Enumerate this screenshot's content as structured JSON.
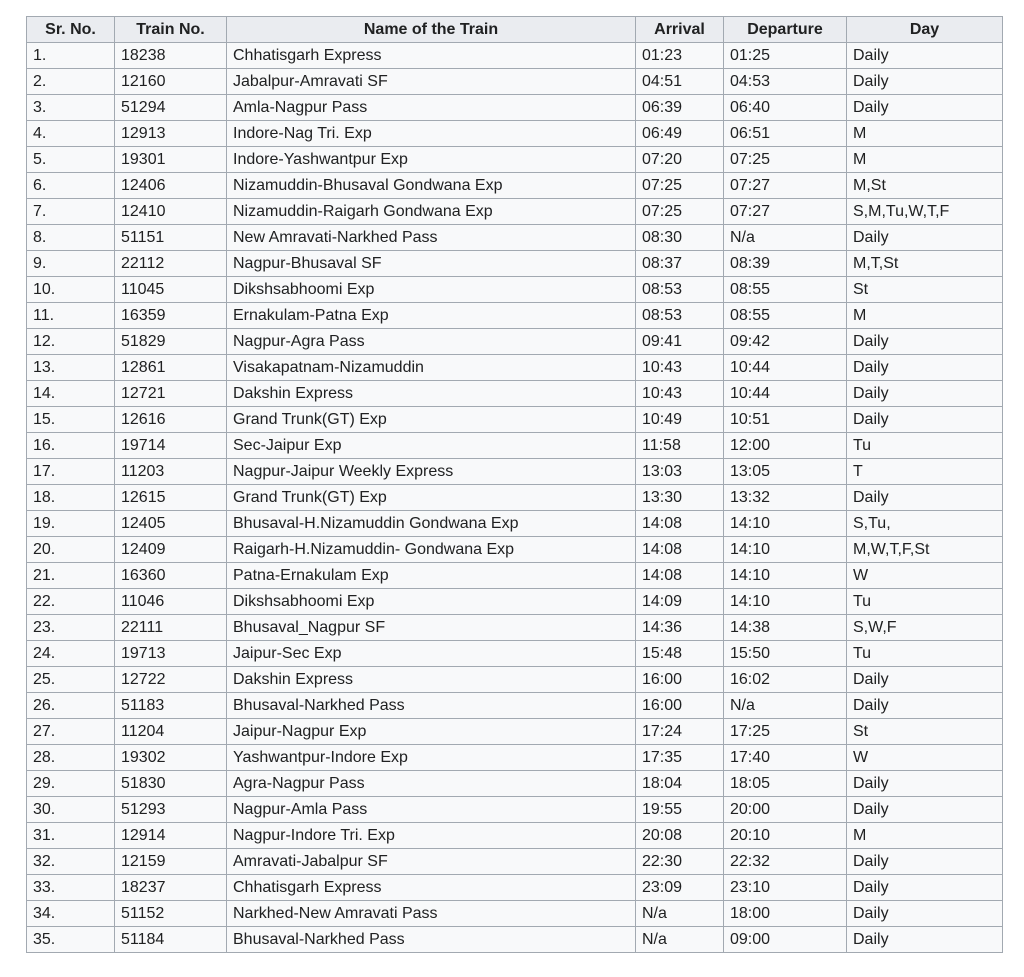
{
  "table": {
    "headers": [
      "Sr. No.",
      "Train No.",
      "Name of the Train",
      "Arrival",
      "Departure",
      "Day"
    ],
    "rows": [
      [
        "1.",
        "18238",
        "Chhatisgarh Express",
        "01:23",
        "01:25",
        "Daily"
      ],
      [
        "2.",
        "12160",
        "Jabalpur-Amravati SF",
        "04:51",
        "04:53",
        "Daily"
      ],
      [
        "3.",
        "51294",
        "Amla-Nagpur Pass",
        "06:39",
        "06:40",
        "Daily"
      ],
      [
        "4.",
        "12913",
        "Indore-Nag Tri. Exp",
        "06:49",
        "06:51",
        "M"
      ],
      [
        "5.",
        "19301",
        "Indore-Yashwantpur Exp",
        "07:20",
        "07:25",
        "M"
      ],
      [
        "6.",
        "12406",
        "Nizamuddin-Bhusaval Gondwana Exp",
        "07:25",
        "07:27",
        "M,St"
      ],
      [
        "7.",
        "12410",
        "Nizamuddin-Raigarh Gondwana Exp",
        "07:25",
        "07:27",
        "S,M,Tu,W,T,F"
      ],
      [
        "8.",
        "51151",
        "New Amravati-Narkhed Pass",
        "08:30",
        "N/a",
        "Daily"
      ],
      [
        "9.",
        "22112",
        "Nagpur-Bhusaval SF",
        "08:37",
        "08:39",
        "M,T,St"
      ],
      [
        "10.",
        "11045",
        "Dikshsabhoomi Exp",
        "08:53",
        "08:55",
        "St"
      ],
      [
        "11.",
        "16359",
        "Ernakulam-Patna Exp",
        "08:53",
        "08:55",
        "M"
      ],
      [
        "12.",
        "51829",
        "Nagpur-Agra Pass",
        "09:41",
        "09:42",
        "Daily"
      ],
      [
        "13.",
        "12861",
        "Visakapatnam-Nizamuddin",
        "10:43",
        "10:44",
        "Daily"
      ],
      [
        "14.",
        "12721",
        "Dakshin Express",
        "10:43",
        "10:44",
        "Daily"
      ],
      [
        "15.",
        "12616",
        "Grand Trunk(GT) Exp",
        "10:49",
        "10:51",
        "Daily"
      ],
      [
        "16.",
        "19714",
        "Sec-Jaipur Exp",
        "11:58",
        "12:00",
        "Tu"
      ],
      [
        "17.",
        "11203",
        "Nagpur-Jaipur Weekly Express",
        "13:03",
        "13:05",
        "T"
      ],
      [
        "18.",
        "12615",
        "Grand Trunk(GT) Exp",
        "13:30",
        "13:32",
        "Daily"
      ],
      [
        "19.",
        "12405",
        "Bhusaval-H.Nizamuddin Gondwana Exp",
        "14:08",
        "14:10",
        "S,Tu,"
      ],
      [
        "20.",
        "12409",
        "Raigarh-H.Nizamuddin- Gondwana Exp",
        "14:08",
        "14:10",
        "M,W,T,F,St"
      ],
      [
        "21.",
        "16360",
        "Patna-Ernakulam Exp",
        "14:08",
        "14:10",
        "W"
      ],
      [
        "22.",
        "11046",
        "Dikshsabhoomi Exp",
        "14:09",
        "14:10",
        "Tu"
      ],
      [
        "23.",
        "22111",
        "Bhusaval_Nagpur SF",
        "14:36",
        "14:38",
        "S,W,F"
      ],
      [
        "24.",
        "19713",
        "Jaipur-Sec Exp",
        "15:48",
        "15:50",
        "Tu"
      ],
      [
        "25.",
        "12722",
        "Dakshin Express",
        "16:00",
        "16:02",
        "Daily"
      ],
      [
        "26.",
        "51183",
        "Bhusaval-Narkhed Pass",
        "16:00",
        "N/a",
        "Daily"
      ],
      [
        "27.",
        "11204",
        "Jaipur-Nagpur Exp",
        "17:24",
        "17:25",
        "St"
      ],
      [
        "28.",
        "19302",
        "Yashwantpur-Indore Exp",
        "17:35",
        "17:40",
        "W"
      ],
      [
        "29.",
        "51830",
        "Agra-Nagpur Pass",
        "18:04",
        "18:05",
        "Daily"
      ],
      [
        "30.",
        "51293",
        "Nagpur-Amla Pass",
        "19:55",
        "20:00",
        "Daily"
      ],
      [
        "31.",
        "12914",
        "Nagpur-Indore Tri. Exp",
        "20:08",
        "20:10",
        "M"
      ],
      [
        "32.",
        "12159",
        "Amravati-Jabalpur SF",
        "22:30",
        "22:32",
        "Daily"
      ],
      [
        "33.",
        "18237",
        "Chhatisgarh Express",
        "23:09",
        "23:10",
        "Daily"
      ],
      [
        "34.",
        "51152",
        "Narkhed-New Amravati Pass",
        "N/a",
        "18:00",
        "Daily"
      ],
      [
        "35.",
        "51184",
        "Bhusaval-Narkhed Pass",
        "N/a",
        "09:00",
        "Daily"
      ]
    ]
  }
}
